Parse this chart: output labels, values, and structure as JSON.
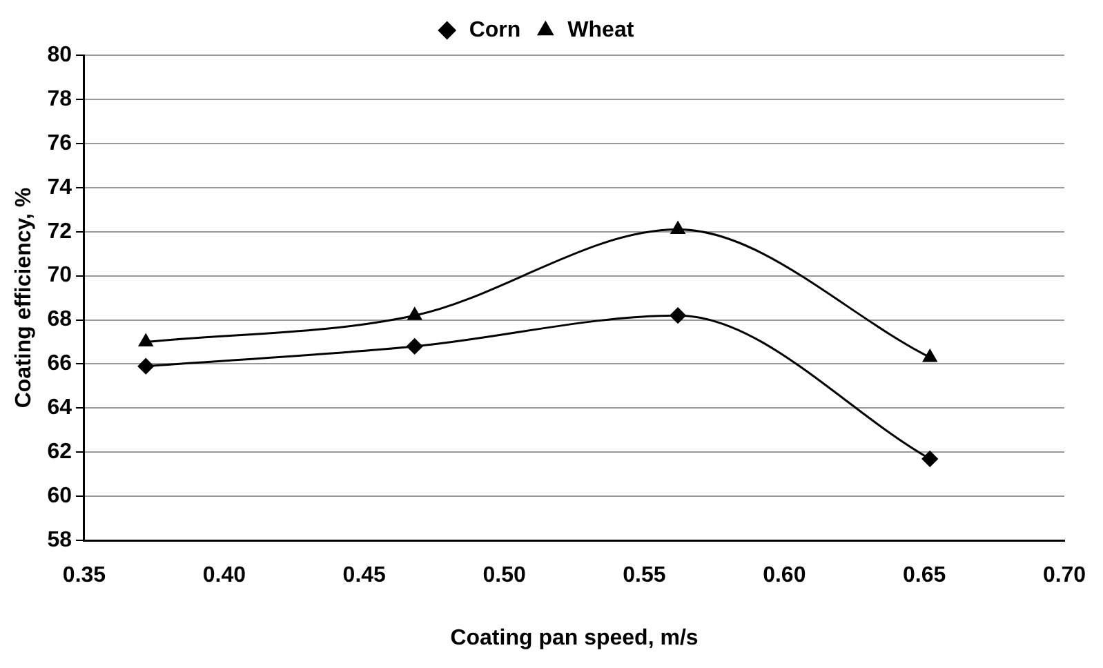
{
  "chart_data": {
    "type": "line",
    "xlabel": "Coating pan speed, m/s",
    "ylabel": "Coating efficiency, %",
    "x": [
      0.372,
      0.468,
      0.562,
      0.652
    ],
    "series": [
      {
        "name": "Corn",
        "color": "#000000",
        "marker": "diamond",
        "values": [
          65.9,
          66.8,
          68.2,
          61.7
        ]
      },
      {
        "name": "Wheat",
        "color": "#000000",
        "marker": "triangle",
        "values": [
          67.0,
          68.2,
          72.1,
          66.3
        ]
      }
    ],
    "xlim": [
      0.35,
      0.7
    ],
    "xticks": [
      0.35,
      {
        "value": 0.4,
        "label": "0.40"
      },
      0.45,
      {
        "value": 0.5,
        "label": "0.50"
      },
      0.55,
      {
        "value": 0.6,
        "label": "0.60"
      },
      0.65,
      {
        "value": 0.7,
        "label": "0.70"
      }
    ],
    "ylim": [
      58,
      80
    ],
    "yticks": [
      58,
      60,
      62,
      64,
      66,
      68,
      70,
      72,
      74,
      76,
      78,
      80
    ],
    "grid": "y",
    "legend": "top"
  }
}
